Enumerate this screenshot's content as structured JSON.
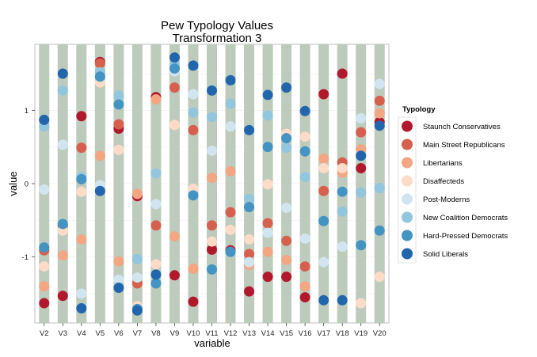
{
  "chart_data": {
    "type": "scatter",
    "title": [
      "Pew Typology Values",
      "Transformation 3"
    ],
    "xlabel": "variable",
    "ylabel": "value",
    "categories": [
      "V2",
      "V3",
      "V4",
      "V5",
      "V6",
      "V7",
      "V8",
      "V9",
      "V10",
      "V11",
      "V12",
      "V13",
      "V14",
      "V15",
      "V16",
      "V17",
      "V18",
      "V19",
      "V20"
    ],
    "ylim": [
      -1.9,
      1.9
    ],
    "yticks": [
      -1,
      0,
      1
    ],
    "legend": {
      "title": "Typology",
      "position": "right"
    },
    "series": [
      {
        "name": "Staunch Conservatives",
        "color": "#B2182B",
        "values": [
          -1.63,
          -1.53,
          0.92,
          1.66,
          0.75,
          -0.17,
          1.18,
          -1.25,
          -1.61,
          -0.9,
          -0.91,
          -1.47,
          -1.27,
          -1.27,
          -1.55,
          1.22,
          1.5,
          0.21,
          0.84
        ]
      },
      {
        "name": "Main Street Republicans",
        "color": "#D6604D",
        "values": [
          -0.91,
          -0.57,
          0.49,
          1.64,
          0.81,
          -1.36,
          -0.57,
          1.31,
          0.73,
          -0.57,
          -0.39,
          -0.96,
          -0.54,
          -0.78,
          -1.13,
          -0.1,
          0.29,
          0.7,
          1.13
        ]
      },
      {
        "name": "Libertarians",
        "color": "#F4A582",
        "values": [
          -1.4,
          -0.98,
          -0.76,
          0.38,
          -1.06,
          -0.14,
          1.15,
          -0.72,
          -1.16,
          0.08,
          0.17,
          -1.11,
          -0.93,
          -1.04,
          -1.4,
          0.34,
          0.15,
          0.47,
          0.96
        ]
      },
      {
        "name": "Disaffecteds",
        "color": "#FDDBC7",
        "values": [
          -1.13,
          -0.64,
          -0.11,
          1.38,
          0.46,
          -1.67,
          -1.1,
          0.8,
          -0.07,
          -0.79,
          -0.63,
          -0.76,
          -0.01,
          0.68,
          0.64,
          0.21,
          0.21,
          -1.63,
          -1.27
        ]
      },
      {
        "name": "Post-Moderns",
        "color": "#D1E5F0",
        "values": [
          -0.08,
          0.53,
          -1.5,
          -0.02,
          -1.31,
          -1.28,
          -0.28,
          1.53,
          1.22,
          0.45,
          0.78,
          -1.07,
          -0.67,
          -0.33,
          -0.75,
          -1.07,
          -0.86,
          0.89,
          1.36
        ]
      },
      {
        "name": "New Coalition Democrats",
        "color": "#92C5DE",
        "values": [
          0.78,
          1.27,
          0.09,
          1.52,
          1.2,
          -1.03,
          0.14,
          1.62,
          0.97,
          0.91,
          1.09,
          -0.21,
          0.93,
          0.49,
          0.09,
          -0.51,
          -0.38,
          -0.12,
          -0.06
        ]
      },
      {
        "name": "Hard-Pressed Democrats",
        "color": "#4393C3",
        "values": [
          -0.87,
          -0.55,
          0.06,
          1.46,
          1.08,
          -1.71,
          -1.36,
          1.57,
          -0.16,
          -1.17,
          -0.93,
          -0.32,
          0.5,
          0.62,
          0.44,
          -0.51,
          -0.11,
          -0.84,
          -0.64
        ]
      },
      {
        "name": "Solid Liberals",
        "color": "#2166AC",
        "values": [
          0.87,
          1.5,
          -1.7,
          -0.1,
          -1.42,
          -1.73,
          -1.24,
          1.72,
          1.61,
          1.27,
          1.41,
          0.73,
          1.21,
          1.31,
          0.99,
          -1.59,
          -1.59,
          0.38,
          0.79
        ]
      }
    ]
  }
}
